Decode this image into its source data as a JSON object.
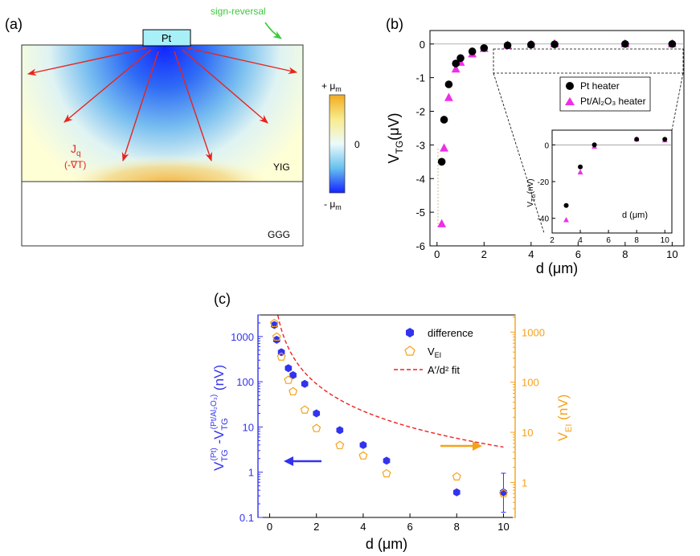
{
  "panel_a": {
    "label": "(a)",
    "electrode_label": "Pt",
    "sign_reversal": "sign-reversal",
    "heat_current": "J",
    "heat_current_sub": "q",
    "gradient": "(-∇T)",
    "layer_top": "YIG",
    "layer_bottom": "GGG",
    "colorbar_top": "+ μ",
    "colorbar_mid": "0",
    "colorbar_bottom": "- μ",
    "colorbar_sub": "m",
    "colors": {
      "arrow": "#e8241c",
      "sign_arrow": "#3cc93c",
      "electrode": "#a8f0f8",
      "hot": "#f5b035",
      "cold": "#1f3fff",
      "background": "#ffffd6"
    }
  },
  "chart_data": [
    {
      "id": "b",
      "type": "scatter",
      "label": "(b)",
      "xlabel": "d (μm)",
      "ylabel": "V",
      "ylabel_sub": "TG",
      "ylabel_unit": "(μV)",
      "xlim": [
        -0.3,
        10.5
      ],
      "ylim": [
        -6,
        0.4
      ],
      "xticks": [
        0,
        2,
        4,
        6,
        8,
        10
      ],
      "yticks": [
        -6,
        -5,
        -4,
        -3,
        -2,
        -1,
        0
      ],
      "series": [
        {
          "name": "Pt heater",
          "marker": "circle",
          "color": "#000000",
          "x": [
            0.2,
            0.3,
            0.5,
            0.8,
            1.0,
            1.5,
            2.0,
            3.0,
            4.0,
            5.0,
            8.0,
            10.0
          ],
          "y": [
            -3.5,
            -2.25,
            -1.2,
            -0.58,
            -0.42,
            -0.22,
            -0.12,
            -0.04,
            -0.02,
            -0.01,
            0.0,
            0.0
          ]
        },
        {
          "name": "Pt/Al₂O₃ heater",
          "marker": "triangle",
          "color": "#ee2ee6",
          "x": [
            0.2,
            0.3,
            0.5,
            0.8,
            1.0,
            1.5,
            2.0,
            3.0,
            4.0,
            5.0,
            8.0,
            10.0
          ],
          "y": [
            -5.35,
            -3.1,
            -1.6,
            -0.75,
            -0.55,
            -0.3,
            -0.14,
            -0.04,
            -0.02,
            0.0,
            0.0,
            0.0
          ]
        }
      ],
      "legend": [
        "Pt heater",
        "Pt/Al₂O₃ heater"
      ],
      "inset": {
        "xlabel": "d (μm)",
        "ylabel": "V",
        "ylabel_sub": "TG",
        "ylabel_unit": "(nV)",
        "xlim": [
          2,
          10.5
        ],
        "ylim": [
          -48,
          8
        ],
        "xticks": [
          2,
          4,
          6,
          8,
          10
        ],
        "yticks": [
          -40,
          -20,
          0
        ],
        "series": [
          {
            "name": "Pt heater",
            "marker": "circle",
            "color": "#000000",
            "x": [
              3,
              4,
              5,
              8,
              10
            ],
            "y": [
              -33,
              -12,
              0,
              3,
              3
            ]
          },
          {
            "name": "Pt/Al₂O₃ heater",
            "marker": "triangle",
            "color": "#ee2ee6",
            "x": [
              3,
              4,
              5,
              8,
              10
            ],
            "y": [
              -41,
              -15,
              -1,
              3,
              2.5
            ]
          }
        ]
      }
    },
    {
      "id": "c",
      "type": "scatter",
      "label": "(c)",
      "xlabel": "d (μm)",
      "ylabel_left": "V",
      "ylabel_left_sub1": "TG",
      "ylabel_left_sup1": "(Pt)",
      "ylabel_left_mid": " -V",
      "ylabel_left_sub2": "TG",
      "ylabel_left_sup2": "(Pt/Al₂O₃)",
      "ylabel_left_unit": " (nV)",
      "ylabel_right": "V",
      "ylabel_right_sub": "EI",
      "ylabel_right_unit": " (nV)",
      "yscale": "log",
      "xlim": [
        -0.5,
        10.5
      ],
      "ylim_left": [
        0.1,
        3000
      ],
      "ylim_right": [
        0.2,
        2200
      ],
      "xticks": [
        0,
        2,
        4,
        6,
        8,
        10
      ],
      "yticks_left": [
        0.1,
        1,
        10,
        100,
        1000
      ],
      "yticks_left_labels": [
        "0.1",
        "1",
        "10",
        "100",
        "1000"
      ],
      "yticks_right": [
        1,
        10,
        100,
        1000
      ],
      "yticks_right_labels": [
        "1",
        "10",
        "100",
        "1000"
      ],
      "colors": {
        "left_axis": "#3333ee",
        "right_axis": "#f5a21b",
        "fit": "#ee2222"
      },
      "series": [
        {
          "name": "difference",
          "marker": "hexagon",
          "color": "#3333ee",
          "axis": "left",
          "x": [
            0.2,
            0.3,
            0.5,
            0.8,
            1.0,
            1.5,
            2.0,
            3.0,
            4.0,
            5.0,
            8.0,
            10.0
          ],
          "y": [
            1800,
            850,
            450,
            200,
            140,
            90,
            20,
            8.5,
            4.0,
            1.8,
            0.36,
            0.36
          ]
        },
        {
          "name": "V_EI",
          "marker": "pentagon",
          "color": "#f5a21b",
          "axis": "right",
          "x": [
            0.2,
            0.3,
            0.5,
            0.8,
            1.0,
            1.5,
            2.0,
            3.0,
            4.0,
            5.0,
            8.0,
            10.0
          ],
          "y": [
            1500,
            800,
            320,
            110,
            65,
            28,
            12,
            5.5,
            3.4,
            1.5,
            1.3,
            0.6
          ]
        }
      ],
      "fit": {
        "name": "A′/d² fit",
        "A": 14.5,
        "axis": "left"
      },
      "legend": [
        "difference",
        "V",
        "A′/d² fit"
      ],
      "legend_sub": "EI"
    }
  ]
}
